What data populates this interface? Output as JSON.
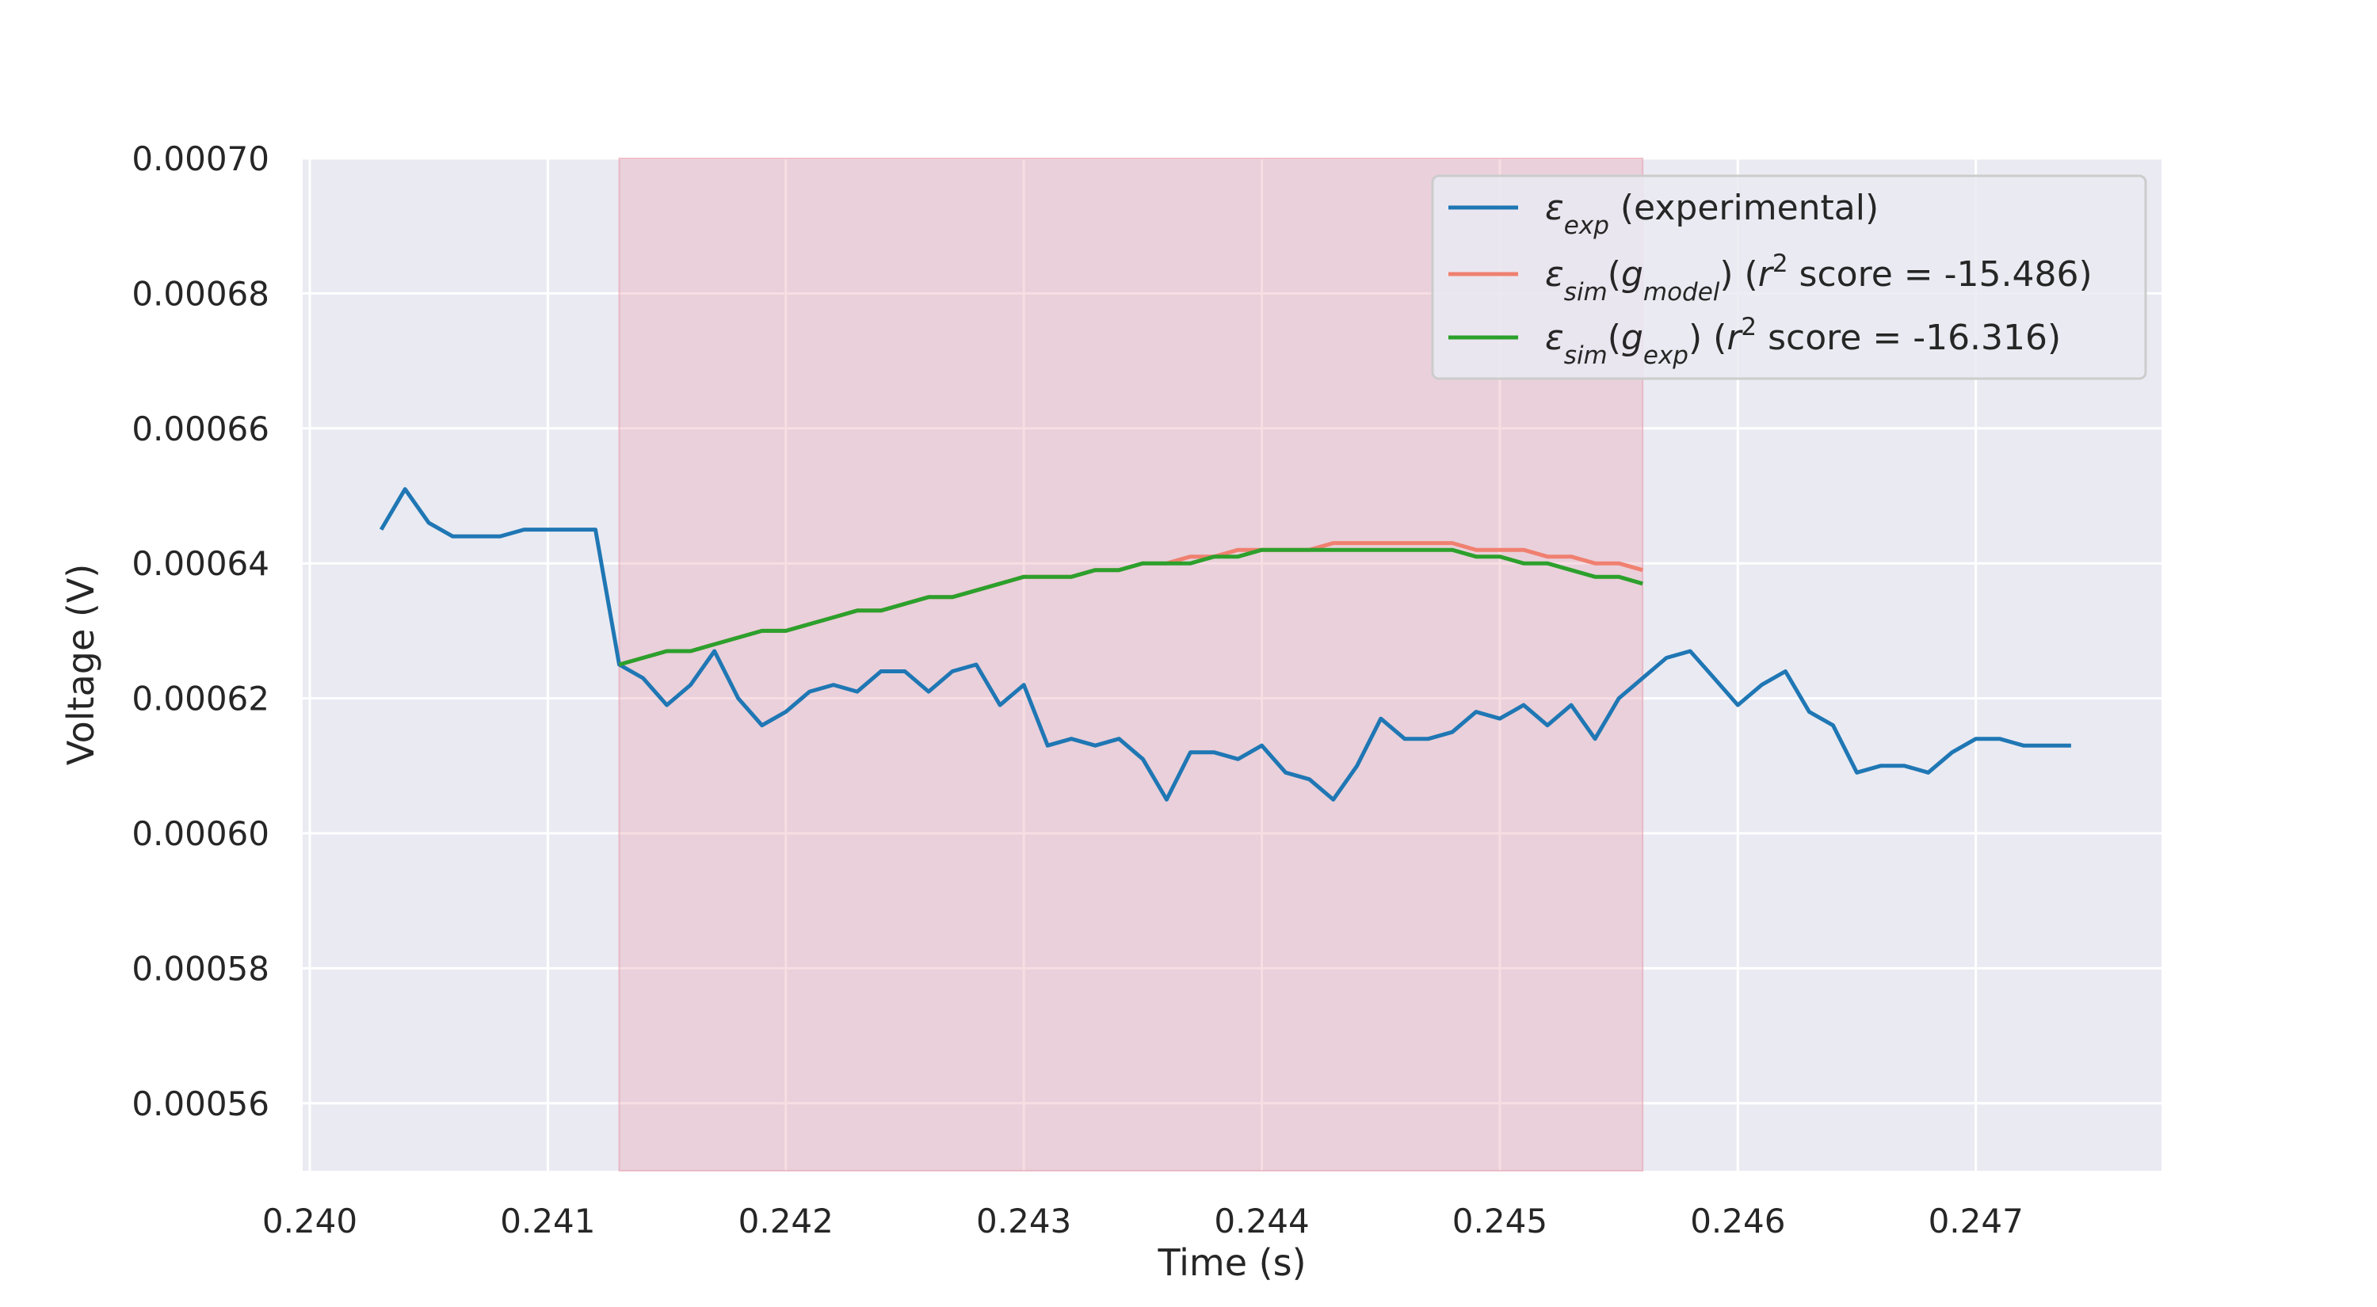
{
  "chart_data": {
    "type": "line",
    "xlabel": "Time (s)",
    "ylabel": "Voltage (V)",
    "xlim": [
      0.23997,
      0.24778
    ],
    "ylim": [
      0.00055,
      0.0007
    ],
    "grid": true,
    "legend_position": "top-right",
    "x_ticks": [
      "0.240",
      "0.241",
      "0.242",
      "0.243",
      "0.244",
      "0.245",
      "0.246",
      "0.247"
    ],
    "y_ticks": [
      "0.00056",
      "0.00058",
      "0.00060",
      "0.00062",
      "0.00064",
      "0.00066",
      "0.00068",
      "0.00070"
    ],
    "highlight_region": {
      "x_start": 0.2413,
      "x_end": 0.2456,
      "color": "#e8a0b0"
    },
    "legend": [
      {
        "base": "ε",
        "sub": "exp",
        "rest": " (experimental)"
      },
      {
        "base": "ε",
        "sub": "sim",
        "open": "(",
        "inner_base": "g",
        "inner_sub": "model",
        "close": ") (",
        "r": "r",
        "sup": "2",
        "tail": " score = -15.486)"
      },
      {
        "base": "ε",
        "sub": "sim",
        "open": "(",
        "inner_base": "g",
        "inner_sub": "exp",
        "close": ") (",
        "r": "r",
        "sup": "2",
        "tail": " score = -16.316)"
      }
    ],
    "series": [
      {
        "name": "ε_exp (experimental)",
        "color": "#1f77b4",
        "x": [
          0.2403,
          0.2404,
          0.2405,
          0.2406,
          0.2407,
          0.2408,
          0.2409,
          0.241,
          0.2411,
          0.2412,
          0.2413,
          0.2414,
          0.2415,
          0.2416,
          0.2417,
          0.2418,
          0.2419,
          0.242,
          0.2421,
          0.2422,
          0.2423,
          0.2424,
          0.2425,
          0.2426,
          0.2427,
          0.2428,
          0.2429,
          0.243,
          0.2431,
          0.2432,
          0.2433,
          0.2434,
          0.2435,
          0.2436,
          0.2437,
          0.2438,
          0.2439,
          0.244,
          0.2441,
          0.2442,
          0.2443,
          0.2444,
          0.2445,
          0.2446,
          0.2447,
          0.2448,
          0.2449,
          0.245,
          0.2451,
          0.2452,
          0.2453,
          0.2454,
          0.2455,
          0.2456,
          0.2457,
          0.2458,
          0.2459,
          0.246,
          0.2461,
          0.2462,
          0.2463,
          0.2464,
          0.2465,
          0.2466,
          0.2467,
          0.2468,
          0.2469,
          0.247,
          0.2471,
          0.2472,
          0.2473,
          0.2474
        ],
        "y": [
          0.000645,
          0.000651,
          0.000646,
          0.000644,
          0.000644,
          0.000644,
          0.000645,
          0.000645,
          0.000645,
          0.000645,
          0.000625,
          0.000623,
          0.000619,
          0.000622,
          0.000627,
          0.00062,
          0.000616,
          0.000618,
          0.000621,
          0.000622,
          0.000621,
          0.000624,
          0.000624,
          0.000621,
          0.000624,
          0.000625,
          0.000619,
          0.000622,
          0.000613,
          0.000614,
          0.000613,
          0.000614,
          0.000611,
          0.000605,
          0.000612,
          0.000612,
          0.000611,
          0.000613,
          0.000609,
          0.000608,
          0.000605,
          0.00061,
          0.000617,
          0.000614,
          0.000614,
          0.000615,
          0.000618,
          0.000617,
          0.000619,
          0.000616,
          0.000619,
          0.000614,
          0.00062,
          0.000623,
          0.000626,
          0.000627,
          0.000623,
          0.000619,
          0.000622,
          0.000624,
          0.000618,
          0.000616,
          0.000609,
          0.00061,
          0.00061,
          0.000609,
          0.000612,
          0.000614,
          0.000614,
          0.000613,
          0.000613,
          0.000613
        ]
      },
      {
        "name": "ε_sim(g_model) (r² score = -15.486)",
        "color": "#f08070",
        "x": [
          0.2413,
          0.2414,
          0.2415,
          0.2416,
          0.2417,
          0.2418,
          0.2419,
          0.242,
          0.2421,
          0.2422,
          0.2423,
          0.2424,
          0.2425,
          0.2426,
          0.2427,
          0.2428,
          0.2429,
          0.243,
          0.2431,
          0.2432,
          0.2433,
          0.2434,
          0.2435,
          0.2436,
          0.2437,
          0.2438,
          0.2439,
          0.244,
          0.2441,
          0.2442,
          0.2443,
          0.2444,
          0.2445,
          0.2446,
          0.2447,
          0.2448,
          0.2449,
          0.245,
          0.2451,
          0.2452,
          0.2453,
          0.2454,
          0.2455,
          0.2456
        ],
        "y": [
          0.000625,
          0.000626,
          0.000627,
          0.000627,
          0.000628,
          0.000629,
          0.00063,
          0.00063,
          0.000631,
          0.000632,
          0.000633,
          0.000633,
          0.000634,
          0.000635,
          0.000635,
          0.000636,
          0.000637,
          0.000638,
          0.000638,
          0.000638,
          0.000639,
          0.000639,
          0.00064,
          0.00064,
          0.000641,
          0.000641,
          0.000642,
          0.000642,
          0.000642,
          0.000642,
          0.000643,
          0.000643,
          0.000643,
          0.000643,
          0.000643,
          0.000643,
          0.000642,
          0.000642,
          0.000642,
          0.000641,
          0.000641,
          0.00064,
          0.00064,
          0.000639
        ]
      },
      {
        "name": "ε_sim(g_exp) (r² score = -16.316)",
        "color": "#2ca02c",
        "x": [
          0.2413,
          0.2414,
          0.2415,
          0.2416,
          0.2417,
          0.2418,
          0.2419,
          0.242,
          0.2421,
          0.2422,
          0.2423,
          0.2424,
          0.2425,
          0.2426,
          0.2427,
          0.2428,
          0.2429,
          0.243,
          0.2431,
          0.2432,
          0.2433,
          0.2434,
          0.2435,
          0.2436,
          0.2437,
          0.2438,
          0.2439,
          0.244,
          0.2441,
          0.2442,
          0.2443,
          0.2444,
          0.2445,
          0.2446,
          0.2447,
          0.2448,
          0.2449,
          0.245,
          0.2451,
          0.2452,
          0.2453,
          0.2454,
          0.2455,
          0.2456
        ],
        "y": [
          0.000625,
          0.000626,
          0.000627,
          0.000627,
          0.000628,
          0.000629,
          0.00063,
          0.00063,
          0.000631,
          0.000632,
          0.000633,
          0.000633,
          0.000634,
          0.000635,
          0.000635,
          0.000636,
          0.000637,
          0.000638,
          0.000638,
          0.000638,
          0.000639,
          0.000639,
          0.00064,
          0.00064,
          0.00064,
          0.000641,
          0.000641,
          0.000642,
          0.000642,
          0.000642,
          0.000642,
          0.000642,
          0.000642,
          0.000642,
          0.000642,
          0.000642,
          0.000641,
          0.000641,
          0.00064,
          0.00064,
          0.000639,
          0.000638,
          0.000638,
          0.000637
        ]
      }
    ]
  }
}
